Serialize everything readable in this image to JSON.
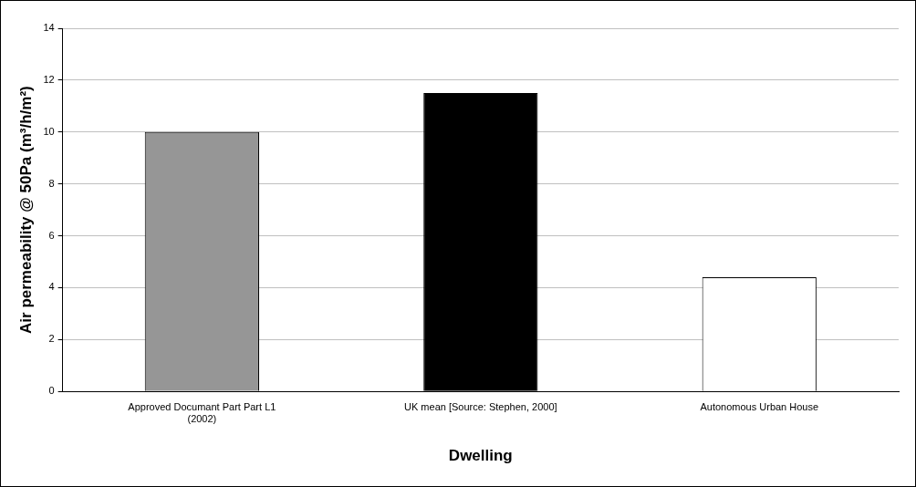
{
  "chart_data": {
    "type": "bar",
    "xlabel": "Dwelling",
    "ylabel": "Air permeability @ 50Pa (m³/h/m²)",
    "categories": [
      "Approved Documant Part Part L1 (2002)",
      "UK mean [Source: Stephen, 2000]",
      "Autonomous Urban House"
    ],
    "values": [
      10,
      11.5,
      4.4
    ],
    "colors": [
      "#969696",
      "#000000",
      "#ffffff"
    ],
    "ylim": [
      0,
      14
    ],
    "yticks": [
      0,
      2,
      4,
      6,
      8,
      10,
      12,
      14
    ],
    "grid": "y",
    "legend": false
  }
}
